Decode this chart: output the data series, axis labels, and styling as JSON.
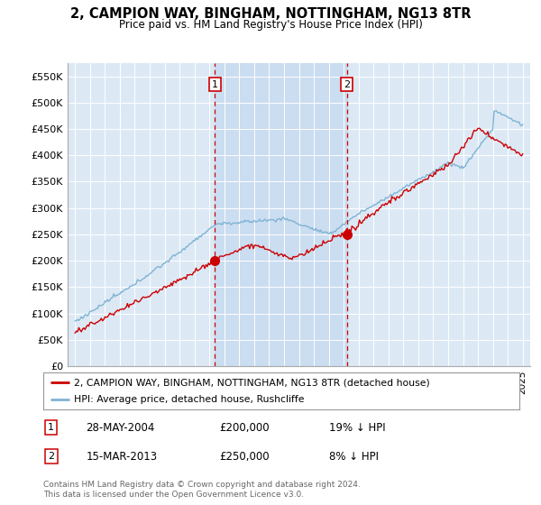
{
  "title": "2, CAMPION WAY, BINGHAM, NOTTINGHAM, NG13 8TR",
  "subtitle": "Price paid vs. HM Land Registry's House Price Index (HPI)",
  "plot_bg_color": "#dce9f5",
  "shade_color": "#c5d9ee",
  "sale1_date_label": "28-MAY-2004",
  "sale1_price": 200000,
  "sale1_hpi_note": "19% ↓ HPI",
  "sale2_date_label": "15-MAR-2013",
  "sale2_price": 250000,
  "sale2_hpi_note": "8% ↓ HPI",
  "sale1_x": 2004.38,
  "sale2_x": 2013.21,
  "yticks": [
    0,
    50000,
    100000,
    150000,
    200000,
    250000,
    300000,
    350000,
    400000,
    450000,
    500000,
    550000
  ],
  "xlim": [
    1994.5,
    2025.5
  ],
  "ylim": [
    0,
    575000
  ],
  "red_line_color": "#cc0000",
  "blue_line_color": "#7fb3d3",
  "vline_color": "#cc0000",
  "footer_text": "Contains HM Land Registry data © Crown copyright and database right 2024.\nThis data is licensed under the Open Government Licence v3.0.",
  "legend_label1": "2, CAMPION WAY, BINGHAM, NOTTINGHAM, NG13 8TR (detached house)",
  "legend_label2": "HPI: Average price, detached house, Rushcliffe"
}
